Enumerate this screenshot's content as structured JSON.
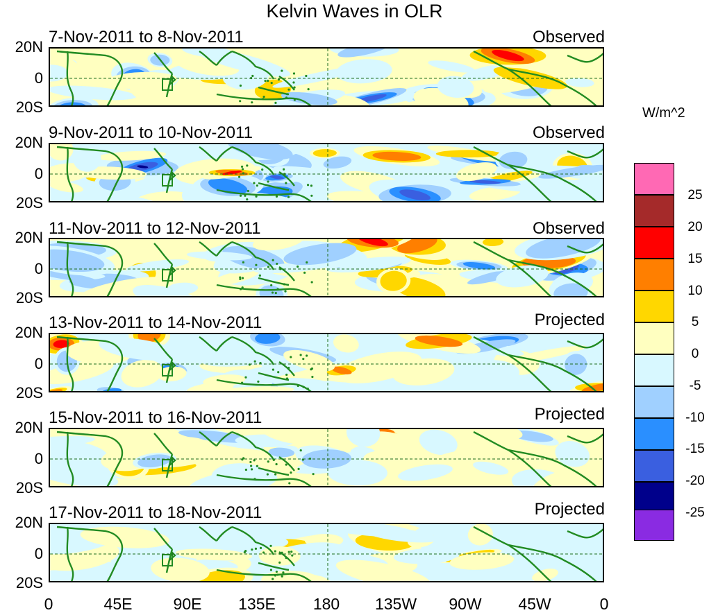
{
  "title": "Kelvin Waves in OLR",
  "colorbar": {
    "unit": "W/m^2",
    "labels": [
      "25",
      "20",
      "15",
      "10",
      "5",
      "0",
      "-5",
      "-10",
      "-15",
      "-20",
      "-25"
    ],
    "colors": [
      "#ff69b4",
      "#a52a2a",
      "#ff0000",
      "#ff7f00",
      "#ffd700",
      "#ffffc0",
      "#d8f8ff",
      "#a0d0ff",
      "#2a8fff",
      "#3a5fe0",
      "#00008b",
      "#8a2be2"
    ]
  },
  "lat_labels": [
    "20N",
    "0",
    "20S"
  ],
  "lon_labels": [
    "0",
    "45E",
    "90E",
    "135E",
    "180",
    "135W",
    "90W",
    "45W",
    "0"
  ],
  "panels": [
    {
      "dates": "7-Nov-2011 to 8-Nov-2011",
      "status": "Observed"
    },
    {
      "dates": "9-Nov-2011 to 10-Nov-2011",
      "status": "Observed"
    },
    {
      "dates": "11-Nov-2011 to 12-Nov-2011",
      "status": "Observed"
    },
    {
      "dates": "13-Nov-2011 to 14-Nov-2011",
      "status": "Projected"
    },
    {
      "dates": "15-Nov-2011 to 16-Nov-2011",
      "status": "Projected"
    },
    {
      "dates": "17-Nov-2011 to 18-Nov-2011",
      "status": "Projected"
    }
  ]
}
